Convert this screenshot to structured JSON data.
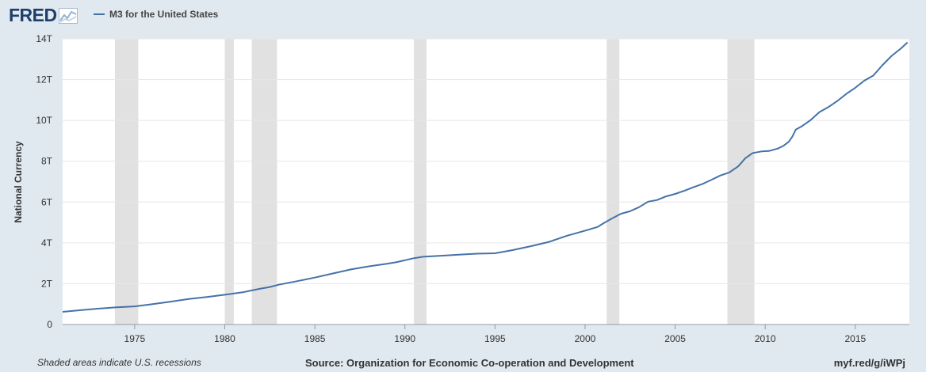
{
  "brand": {
    "name": "FRED"
  },
  "legend": {
    "series_label": "M3 for the United States",
    "color": "#4572a7"
  },
  "footer": {
    "recession_note": "Shaded areas indicate U.S. recessions",
    "source": "Source: Organization for Economic Co-operation and Development",
    "link": "myf.red/g/iWPj"
  },
  "colors": {
    "page_background": "#e1e9f0",
    "plot_background": "#ffffff",
    "series": "#4572a7",
    "recession_shade": "#e1e1e1"
  },
  "chart_data": {
    "type": "line",
    "title": "",
    "xlabel": "",
    "ylabel": "National Currency",
    "xlim": [
      1971.0,
      2018.0
    ],
    "ylim": [
      0,
      14
    ],
    "grid": true,
    "legend_position": "top-left",
    "x_ticks": [
      1975,
      1980,
      1985,
      1990,
      1995,
      2000,
      2005,
      2010,
      2015
    ],
    "y_ticks": [
      {
        "value": 0,
        "label": "0"
      },
      {
        "value": 2,
        "label": "2T"
      },
      {
        "value": 4,
        "label": "4T"
      },
      {
        "value": 6,
        "label": "6T"
      },
      {
        "value": 8,
        "label": "8T"
      },
      {
        "value": 10,
        "label": "10T"
      },
      {
        "value": 12,
        "label": "12T"
      },
      {
        "value": 14,
        "label": "14T"
      }
    ],
    "recessions": [
      [
        1973.9,
        1975.2
      ],
      [
        1980.0,
        1980.5
      ],
      [
        1981.5,
        1982.9
      ],
      [
        1990.5,
        1991.2
      ],
      [
        2001.2,
        2001.9
      ],
      [
        2007.9,
        2009.4
      ]
    ],
    "series": [
      {
        "name": "M3 for the United States",
        "unit": "trillions",
        "points": [
          [
            1971.0,
            0.62
          ],
          [
            1972.0,
            0.7
          ],
          [
            1973.0,
            0.78
          ],
          [
            1974.0,
            0.84
          ],
          [
            1975.0,
            0.89
          ],
          [
            1976.0,
            1.0
          ],
          [
            1977.0,
            1.12
          ],
          [
            1978.0,
            1.25
          ],
          [
            1979.0,
            1.35
          ],
          [
            1980.0,
            1.46
          ],
          [
            1981.0,
            1.58
          ],
          [
            1981.5,
            1.67
          ],
          [
            1982.0,
            1.76
          ],
          [
            1982.5,
            1.84
          ],
          [
            1983.0,
            1.95
          ],
          [
            1984.0,
            2.12
          ],
          [
            1985.0,
            2.3
          ],
          [
            1986.0,
            2.5
          ],
          [
            1987.0,
            2.7
          ],
          [
            1988.0,
            2.85
          ],
          [
            1989.0,
            2.98
          ],
          [
            1989.5,
            3.05
          ],
          [
            1990.0,
            3.15
          ],
          [
            1990.5,
            3.25
          ],
          [
            1991.0,
            3.32
          ],
          [
            1992.0,
            3.37
          ],
          [
            1993.0,
            3.42
          ],
          [
            1994.0,
            3.47
          ],
          [
            1995.0,
            3.49
          ],
          [
            1996.0,
            3.65
          ],
          [
            1997.0,
            3.84
          ],
          [
            1998.0,
            4.05
          ],
          [
            1999.0,
            4.35
          ],
          [
            2000.0,
            4.6
          ],
          [
            2000.7,
            4.78
          ],
          [
            2001.0,
            4.95
          ],
          [
            2001.5,
            5.2
          ],
          [
            2002.0,
            5.43
          ],
          [
            2002.5,
            5.55
          ],
          [
            2003.0,
            5.75
          ],
          [
            2003.5,
            6.02
          ],
          [
            2004.0,
            6.1
          ],
          [
            2004.5,
            6.28
          ],
          [
            2005.0,
            6.4
          ],
          [
            2005.5,
            6.55
          ],
          [
            2006.0,
            6.72
          ],
          [
            2006.5,
            6.88
          ],
          [
            2007.0,
            7.08
          ],
          [
            2007.5,
            7.3
          ],
          [
            2008.0,
            7.45
          ],
          [
            2008.5,
            7.75
          ],
          [
            2008.9,
            8.15
          ],
          [
            2009.3,
            8.4
          ],
          [
            2009.8,
            8.48
          ],
          [
            2010.2,
            8.5
          ],
          [
            2010.7,
            8.62
          ],
          [
            2011.0,
            8.75
          ],
          [
            2011.3,
            8.95
          ],
          [
            2011.5,
            9.2
          ],
          [
            2011.7,
            9.55
          ],
          [
            2012.0,
            9.7
          ],
          [
            2012.5,
            10.0
          ],
          [
            2013.0,
            10.4
          ],
          [
            2013.5,
            10.65
          ],
          [
            2014.0,
            10.95
          ],
          [
            2014.5,
            11.3
          ],
          [
            2015.0,
            11.6
          ],
          [
            2015.5,
            11.95
          ],
          [
            2016.0,
            12.2
          ],
          [
            2016.5,
            12.7
          ],
          [
            2017.0,
            13.15
          ],
          [
            2017.5,
            13.5
          ],
          [
            2017.9,
            13.82
          ]
        ]
      }
    ]
  }
}
